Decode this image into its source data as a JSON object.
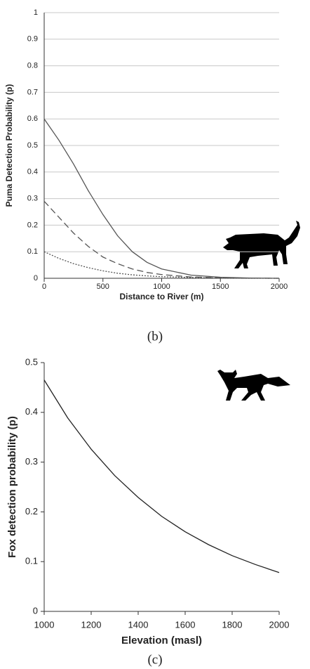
{
  "chart_data": [
    {
      "type": "line",
      "caption": "(b)",
      "xlabel": "Distance to River (m)",
      "ylabel": "Puma Detection Probability (p)",
      "x": [
        0,
        125,
        250,
        375,
        500,
        625,
        750,
        875,
        1000,
        1250,
        1500,
        1750,
        2000
      ],
      "series": [
        {
          "color": "#555555",
          "dash": "solid",
          "values": [
            0.6,
            0.52,
            0.43,
            0.33,
            0.24,
            0.16,
            0.1,
            0.06,
            0.035,
            0.012,
            0.004,
            0.001,
            0
          ]
        },
        {
          "color": "#555555",
          "dash": "dashed",
          "values": [
            0.29,
            0.23,
            0.17,
            0.12,
            0.08,
            0.055,
            0.035,
            0.022,
            0.014,
            0.005,
            0.002,
            0.0005,
            0
          ]
        },
        {
          "color": "#555555",
          "dash": "dotted",
          "values": [
            0.1,
            0.075,
            0.055,
            0.04,
            0.028,
            0.019,
            0.013,
            0.009,
            0.006,
            0.003,
            0.001,
            0,
            0
          ]
        }
      ],
      "xlim": [
        0,
        2000
      ],
      "xticks": [
        0,
        500,
        1000,
        1500,
        2000
      ],
      "ylim": [
        0,
        1
      ],
      "yticks": [
        0,
        0.1,
        0.2,
        0.3,
        0.4,
        0.5,
        0.6,
        0.7,
        0.8,
        0.9,
        1
      ],
      "grid": true
    },
    {
      "type": "line",
      "caption": "(c)",
      "xlabel": "Elevation (masl)",
      "ylabel": "Fox detection probability (p)",
      "x": [
        1000,
        1100,
        1200,
        1300,
        1400,
        1500,
        1600,
        1700,
        1800,
        1900,
        2000
      ],
      "series": [
        {
          "color": "#222222",
          "dash": "solid",
          "values": [
            0.465,
            0.389,
            0.326,
            0.273,
            0.229,
            0.191,
            0.16,
            0.134,
            0.112,
            0.094,
            0.078
          ]
        }
      ],
      "xlim": [
        1000,
        2000
      ],
      "xticks": [
        1000,
        1200,
        1400,
        1600,
        1800,
        2000
      ],
      "ylim": [
        0,
        0.5
      ],
      "yticks": [
        0,
        0.1,
        0.2,
        0.3,
        0.4,
        0.5
      ],
      "grid": false
    }
  ]
}
